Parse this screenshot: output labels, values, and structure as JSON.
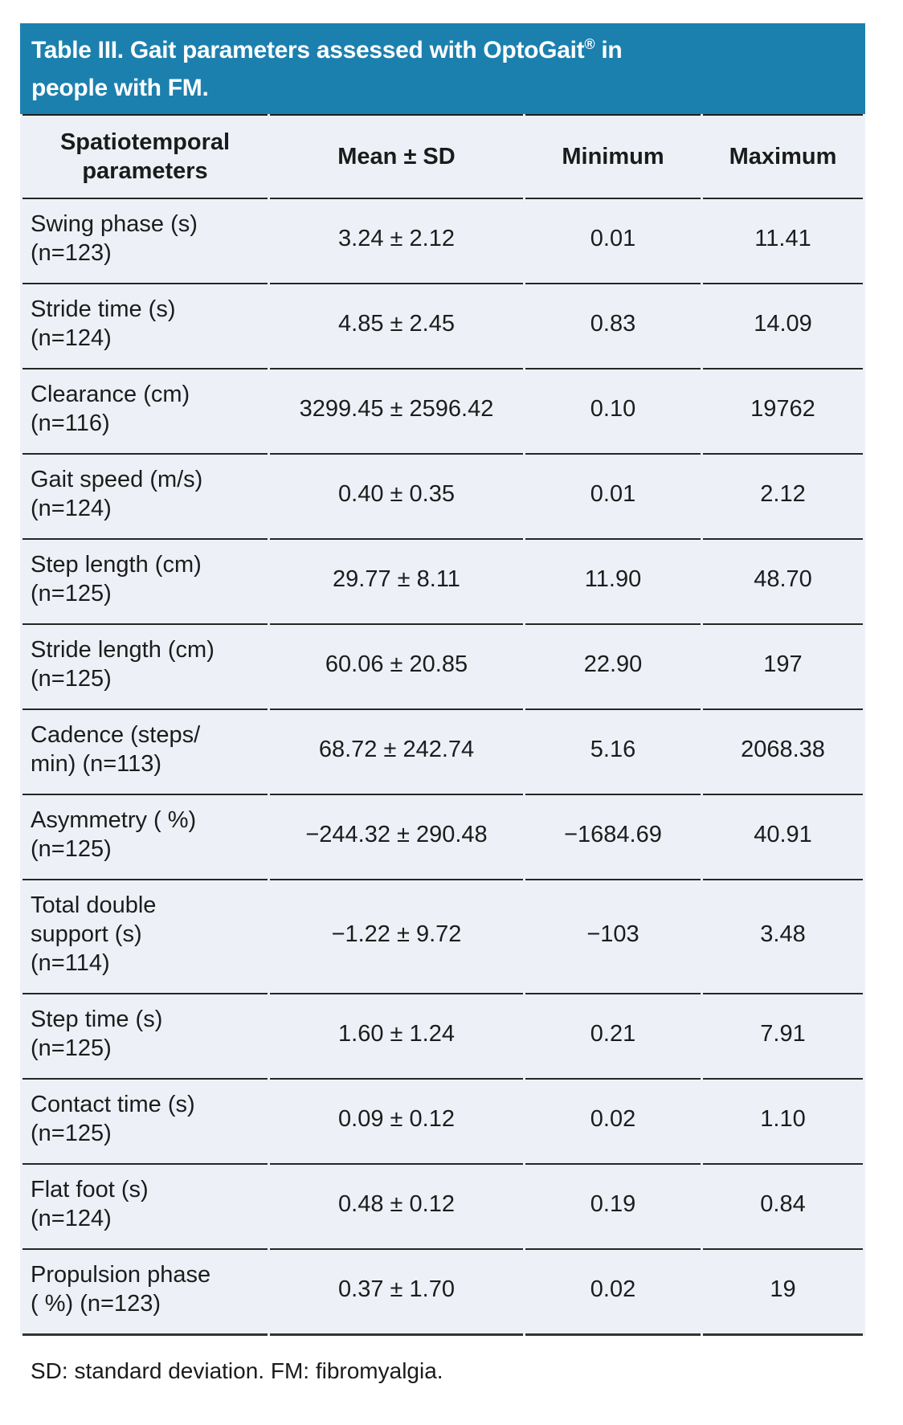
{
  "title": {
    "line1_pre": "Table III. Gait parameters assessed with OptoGait",
    "sup": "®",
    "line1_post": " in",
    "line2": "people with FM."
  },
  "colors": {
    "title_bar_bg": "#1c80ae",
    "title_text": "#ffffff",
    "table_bg": "#edf1f7",
    "body_text": "#1c1c1c",
    "rule_lines": "#262626"
  },
  "table": {
    "headers": [
      "Spatiotemporal parameters",
      "Mean ± SD",
      "Minimum",
      "Maximum"
    ],
    "rows": [
      {
        "label_lines": [
          "Swing phase (s)",
          "(n=123)"
        ],
        "mean_sd": "3.24 ± 2.12",
        "min": "0.01",
        "max": "11.41"
      },
      {
        "label_lines": [
          "Stride time (s)",
          "(n=124)"
        ],
        "mean_sd": "4.85 ± 2.45",
        "min": "0.83",
        "max": "14.09"
      },
      {
        "label_lines": [
          "Clearance (cm)",
          "(n=116)"
        ],
        "mean_sd": "3299.45 ± 2596.42",
        "min": "0.10",
        "max": "19762"
      },
      {
        "label_lines": [
          "Gait speed (m/s)",
          "(n=124)"
        ],
        "mean_sd": "0.40 ± 0.35",
        "min": "0.01",
        "max": "2.12"
      },
      {
        "label_lines": [
          "Step length (cm)",
          "(n=125)"
        ],
        "mean_sd": "29.77 ± 8.11",
        "min": "11.90",
        "max": "48.70"
      },
      {
        "label_lines": [
          "Stride length (cm)",
          "(n=125)"
        ],
        "mean_sd": "60.06 ± 20.85",
        "min": "22.90",
        "max": "197"
      },
      {
        "label_lines": [
          "Cadence (steps/",
          "min) (n=113)"
        ],
        "mean_sd": "68.72 ± 242.74",
        "min": "5.16",
        "max": "2068.38"
      },
      {
        "label_lines": [
          "Asymmetry ( %)",
          "(n=125)"
        ],
        "mean_sd": "−244.32 ± 290.48",
        "min": "−1684.69",
        "max": "40.91"
      },
      {
        "label_lines": [
          "Total double",
          "support (s)",
          "(n=114)"
        ],
        "mean_sd": "−1.22 ± 9.72",
        "min": "−103",
        "max": "3.48"
      },
      {
        "label_lines": [
          "Step time (s)",
          "(n=125)"
        ],
        "mean_sd": "1.60 ± 1.24",
        "min": "0.21",
        "max": "7.91"
      },
      {
        "label_lines": [
          "Contact time (s)",
          "(n=125)"
        ],
        "mean_sd": "0.09 ± 0.12",
        "min": "0.02",
        "max": "1.10"
      },
      {
        "label_lines": [
          "Flat foot (s)",
          "(n=124)"
        ],
        "mean_sd": "0.48 ± 0.12",
        "min": "0.19",
        "max": "0.84"
      },
      {
        "label_lines": [
          "Propulsion phase",
          "( %) (n=123)"
        ],
        "mean_sd": "0.37 ± 1.70",
        "min": "0.02",
        "max": "19"
      }
    ]
  },
  "footnote": "SD: standard deviation. FM: fibromyalgia."
}
